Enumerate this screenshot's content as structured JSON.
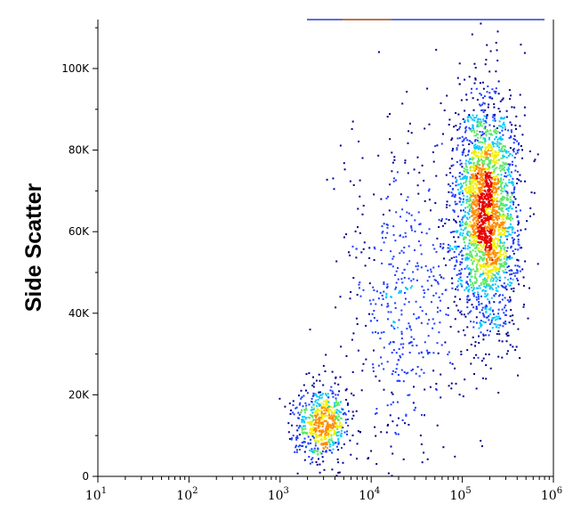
{
  "chart_data": {
    "type": "scatter",
    "title": "",
    "xlabel": "",
    "ylabel": "Side Scatter",
    "x_scale": "log",
    "xlim": [
      10,
      1000000
    ],
    "ylim": [
      0,
      112000
    ],
    "grid": false,
    "legend": "none",
    "x_ticks": [
      {
        "value": 10,
        "base": "10",
        "exp": "1"
      },
      {
        "value": 100,
        "base": "10",
        "exp": "2"
      },
      {
        "value": 1000,
        "base": "10",
        "exp": "3"
      },
      {
        "value": 10000,
        "base": "10",
        "exp": "4"
      },
      {
        "value": 100000,
        "base": "10",
        "exp": "5"
      },
      {
        "value": 1000000,
        "base": "10",
        "exp": "6"
      }
    ],
    "y_ticks": [
      {
        "value": 0,
        "label": "0"
      },
      {
        "value": 20000,
        "label": "20K"
      },
      {
        "value": 40000,
        "label": "40K"
      },
      {
        "value": 60000,
        "label": "60K"
      },
      {
        "value": 80000,
        "label": "80K"
      },
      {
        "value": 100000,
        "label": "100K"
      }
    ],
    "density_colors": [
      "#00008b",
      "#1e3cff",
      "#00c8ff",
      "#5fe86a",
      "#f0f000",
      "#ff8c00",
      "#e60000"
    ],
    "populations": [
      {
        "center_x": 180000,
        "center_y": 65000,
        "spread_log_x": 0.17,
        "spread_y": 14000,
        "points": 2600
      },
      {
        "center_x": 2800,
        "center_y": 13000,
        "spread_log_x": 0.15,
        "spread_y": 4500,
        "points": 650
      },
      {
        "center_x": 25000,
        "center_y": 45000,
        "spread_log_x": 0.35,
        "spread_y": 20000,
        "points": 520
      }
    ]
  }
}
